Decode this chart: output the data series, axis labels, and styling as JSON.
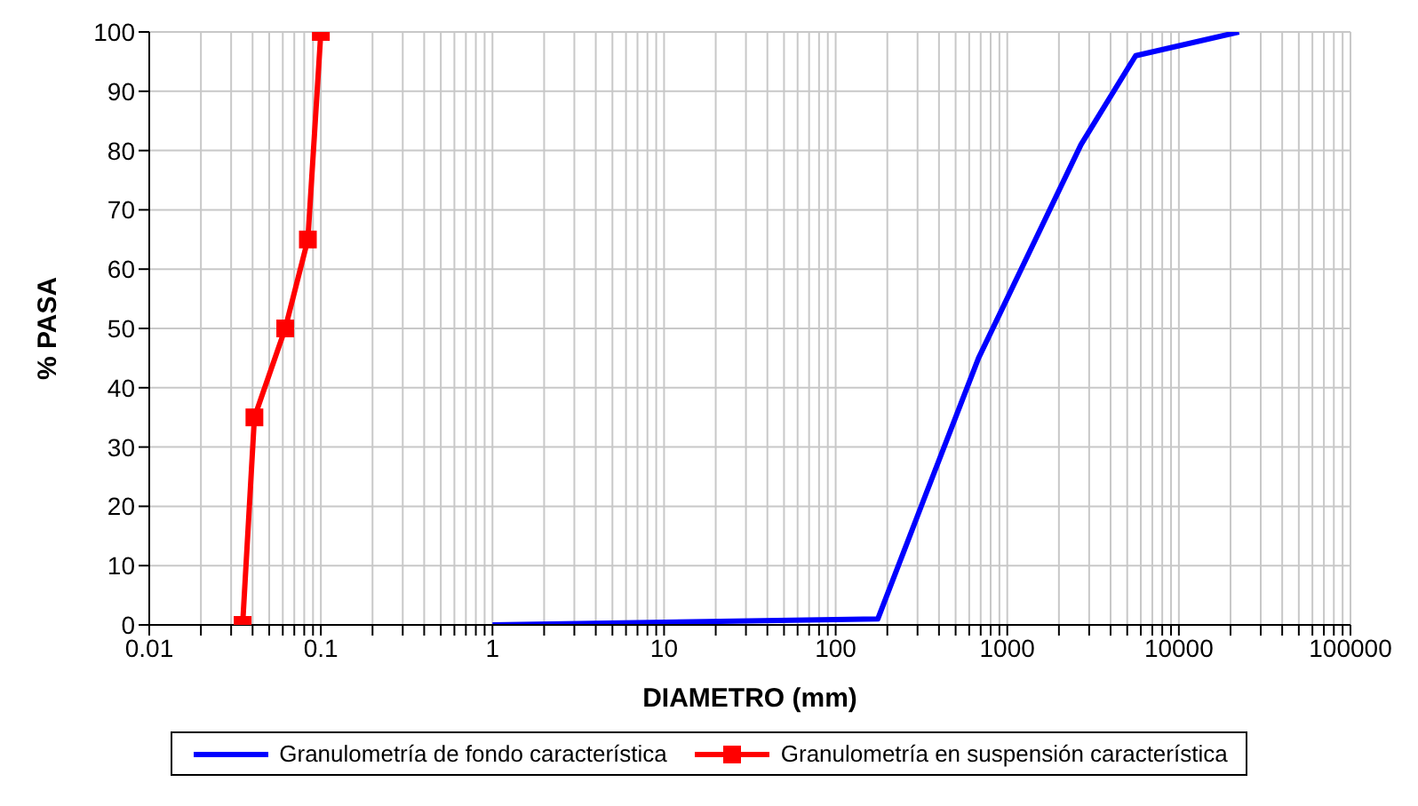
{
  "chart_data": {
    "type": "line",
    "xlabel": "DIAMETRO (mm)",
    "ylabel": "% PASA",
    "log": "x",
    "grid": true,
    "legend": "bottom",
    "line_style": "solid",
    "xlim": [
      0.01,
      100000
    ],
    "ylim": [
      0,
      100
    ],
    "yticks": [
      0,
      10,
      20,
      30,
      40,
      50,
      60,
      70,
      80,
      90,
      100
    ],
    "xticks": [
      0.01,
      {
        "value": 0.02,
        "label": null
      },
      {
        "value": 0.03,
        "label": null
      },
      {
        "value": 0.04,
        "label": null
      },
      {
        "value": 0.05,
        "label": null
      },
      {
        "value": 0.06,
        "label": null
      },
      {
        "value": 0.07,
        "label": null
      },
      {
        "value": 0.08,
        "label": null
      },
      {
        "value": 0.09,
        "label": null
      },
      0.1,
      {
        "value": 0.2,
        "label": null
      },
      {
        "value": 0.3,
        "label": null
      },
      {
        "value": 0.4,
        "label": null
      },
      {
        "value": 0.5,
        "label": null
      },
      {
        "value": 0.6,
        "label": null
      },
      {
        "value": 0.7,
        "label": null
      },
      {
        "value": 0.8,
        "label": null
      },
      {
        "value": 0.9,
        "label": null
      },
      1,
      {
        "value": 2,
        "label": null
      },
      {
        "value": 3,
        "label": null
      },
      {
        "value": 4,
        "label": null
      },
      {
        "value": 5,
        "label": null
      },
      {
        "value": 6,
        "label": null
      },
      {
        "value": 7,
        "label": null
      },
      {
        "value": 8,
        "label": null
      },
      {
        "value": 9,
        "label": null
      },
      10,
      {
        "value": 20,
        "label": null
      },
      {
        "value": 30,
        "label": null
      },
      {
        "value": 40,
        "label": null
      },
      {
        "value": 50,
        "label": null
      },
      {
        "value": 60,
        "label": null
      },
      {
        "value": 70,
        "label": null
      },
      {
        "value": 80,
        "label": null
      },
      {
        "value": 90,
        "label": null
      },
      100,
      {
        "value": 200,
        "label": null
      },
      {
        "value": 300,
        "label": null
      },
      {
        "value": 400,
        "label": null
      },
      {
        "value": 500,
        "label": null
      },
      {
        "value": 600,
        "label": null
      },
      {
        "value": 700,
        "label": null
      },
      {
        "value": 800,
        "label": null
      },
      {
        "value": 900,
        "label": null
      },
      1000,
      {
        "value": 2000,
        "label": null
      },
      {
        "value": 3000,
        "label": null
      },
      {
        "value": 4000,
        "label": null
      },
      {
        "value": 5000,
        "label": null
      },
      {
        "value": 6000,
        "label": null
      },
      {
        "value": 7000,
        "label": null
      },
      {
        "value": 8000,
        "label": null
      },
      {
        "value": 9000,
        "label": null
      },
      10000,
      {
        "value": 20000,
        "label": null
      },
      {
        "value": 30000,
        "label": null
      },
      {
        "value": 40000,
        "label": null
      },
      {
        "value": 50000,
        "label": null
      },
      {
        "value": 60000,
        "label": null
      },
      {
        "value": 70000,
        "label": null
      },
      {
        "value": 80000,
        "label": null
      },
      {
        "value": 90000,
        "label": null
      },
      100000
    ],
    "series": [
      {
        "name": "Granulometría de fondo característica",
        "color": "#0000ff",
        "marker": "none",
        "x": [
          1,
          176,
          335,
          680,
          2690,
          5600,
          22400
        ],
        "values": [
          0,
          1,
          22,
          45,
          81,
          96,
          100
        ]
      },
      {
        "name": "Granulometría en suspensión característica",
        "color": "#ff0000",
        "marker": "square",
        "x": [
          0.035,
          0.041,
          0.062,
          0.084,
          0.1
        ],
        "values": [
          0,
          35,
          50,
          65,
          100
        ]
      }
    ]
  }
}
